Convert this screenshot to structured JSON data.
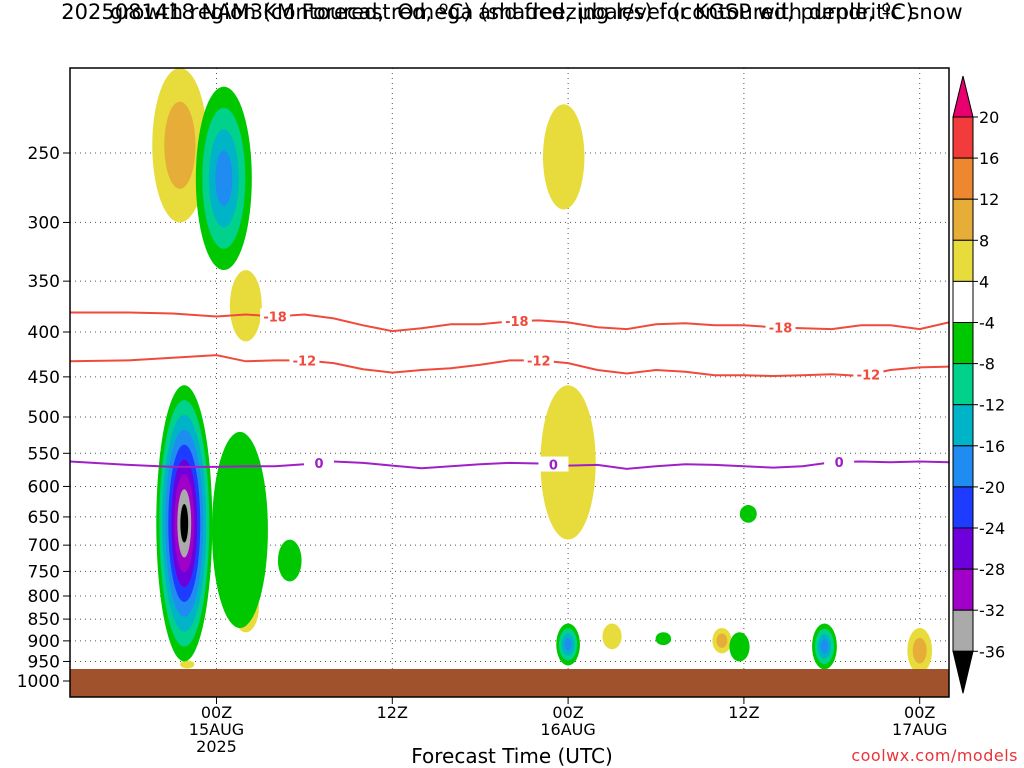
{
  "title_line1": "2025081418 NAM3KM Forecast Omega (shaded, μbar/s) for KGSP with dendritic snow",
  "title_line2": "growth region (contoured, red, ºC) and freezing level (contoured, purple, ºC)",
  "credit": "coolwx.com/models",
  "chart_data": {
    "type": "heatmap",
    "title": "2025081418 NAM3KM Forecast Omega (shaded, μbar/s) for KGSP with dendritic snow growth region (contoured, red, ºC) and freezing level (contoured, purple, ºC)",
    "xlabel": "Forecast Time (UTC)",
    "ylabel": "",
    "xlim_hours": [
      -10,
      50
    ],
    "ylim_hPa": [
      1000,
      200
    ],
    "y_scale": "log-pressure",
    "y_ticks": [
      250,
      300,
      350,
      400,
      450,
      500,
      550,
      600,
      650,
      700,
      750,
      800,
      850,
      900,
      950,
      1000
    ],
    "x_ticks": [
      {
        "hour": 0,
        "lines": [
          "00Z",
          "15AUG",
          "2025"
        ]
      },
      {
        "hour": 12,
        "lines": [
          "12Z"
        ]
      },
      {
        "hour": 24,
        "lines": [
          "00Z",
          "16AUG"
        ]
      },
      {
        "hour": 36,
        "lines": [
          "12Z"
        ]
      },
      {
        "hour": 48,
        "lines": [
          "00Z",
          "17AUG"
        ]
      }
    ],
    "grid": true,
    "ground_color": "#a0522d",
    "colorbar": {
      "levels": [
        20,
        16,
        12,
        8,
        4,
        -4,
        -8,
        -12,
        -16,
        -20,
        -24,
        -28,
        -32,
        -36
      ],
      "colors": [
        "#e8006e",
        "#f23c3c",
        "#ee8830",
        "#e6ad38",
        "#e8dc3c",
        "#ffffff",
        "#00c800",
        "#00d28c",
        "#00b4c8",
        "#1e8cf0",
        "#1e3cff",
        "#6e00dc",
        "#a000c8",
        "#aaaaaa",
        "#000000"
      ]
    },
    "contours": [
      {
        "name": "-18",
        "color": "#f04a3c",
        "label_hours": [
          4.0,
          20.5,
          38.5
        ],
        "points": [
          [
            -10,
            380
          ],
          [
            -6,
            380
          ],
          [
            -3,
            381
          ],
          [
            0,
            384
          ],
          [
            2,
            382
          ],
          [
            4,
            384
          ],
          [
            6,
            382
          ],
          [
            8,
            386
          ],
          [
            10,
            393
          ],
          [
            12,
            399
          ],
          [
            14,
            396
          ],
          [
            16,
            392
          ],
          [
            18,
            392
          ],
          [
            20,
            389
          ],
          [
            22,
            388
          ],
          [
            24,
            390
          ],
          [
            26,
            395
          ],
          [
            28,
            397
          ],
          [
            30,
            392
          ],
          [
            32,
            391
          ],
          [
            34,
            393
          ],
          [
            36,
            393
          ],
          [
            38,
            395
          ],
          [
            40,
            396
          ],
          [
            42,
            397
          ],
          [
            44,
            393
          ],
          [
            46,
            393
          ],
          [
            48,
            397
          ],
          [
            50,
            390
          ]
        ]
      },
      {
        "name": "-12",
        "color": "#f04a3c",
        "label_hours": [
          6.0,
          22.0,
          44.5
        ],
        "points": [
          [
            -10,
            432
          ],
          [
            -6,
            431
          ],
          [
            -3,
            428
          ],
          [
            0,
            425
          ],
          [
            2,
            432
          ],
          [
            4,
            431
          ],
          [
            6,
            431
          ],
          [
            8,
            434
          ],
          [
            10,
            441
          ],
          [
            12,
            445
          ],
          [
            14,
            442
          ],
          [
            16,
            440
          ],
          [
            18,
            436
          ],
          [
            20,
            431
          ],
          [
            22,
            431
          ],
          [
            24,
            434
          ],
          [
            26,
            442
          ],
          [
            28,
            446
          ],
          [
            30,
            442
          ],
          [
            32,
            444
          ],
          [
            34,
            448
          ],
          [
            36,
            448
          ],
          [
            38,
            449
          ],
          [
            40,
            448
          ],
          [
            42,
            447
          ],
          [
            44,
            449
          ],
          [
            46,
            442
          ],
          [
            48,
            439
          ],
          [
            50,
            438
          ]
        ]
      },
      {
        "name": "0",
        "color": "#a020c8",
        "label_hours": [
          7.0,
          23.0,
          42.5
        ],
        "points": [
          [
            -10,
            562
          ],
          [
            -6,
            567
          ],
          [
            -3,
            570
          ],
          [
            0,
            570
          ],
          [
            2,
            569
          ],
          [
            4,
            569
          ],
          [
            6,
            566
          ],
          [
            8,
            562
          ],
          [
            10,
            564
          ],
          [
            12,
            568
          ],
          [
            14,
            572
          ],
          [
            16,
            569
          ],
          [
            18,
            566
          ],
          [
            20,
            564
          ],
          [
            22,
            565
          ],
          [
            24,
            568
          ],
          [
            26,
            567
          ],
          [
            28,
            573
          ],
          [
            30,
            569
          ],
          [
            32,
            566
          ],
          [
            34,
            567
          ],
          [
            36,
            569
          ],
          [
            38,
            571
          ],
          [
            40,
            569
          ],
          [
            42,
            563
          ],
          [
            44,
            562
          ],
          [
            46,
            563
          ],
          [
            48,
            562
          ],
          [
            50,
            563
          ]
        ]
      }
    ],
    "features": [
      {
        "kind": "omega_max",
        "value": 8,
        "hour": -2.5,
        "p_low": 200,
        "p_high": 300
      },
      {
        "kind": "omega_max",
        "value": 4,
        "hour": 2.0,
        "p_low": 340,
        "p_high": 410
      },
      {
        "kind": "omega_max",
        "value": 4,
        "hour": 2.0,
        "p_low": 770,
        "p_high": 880
      },
      {
        "kind": "omega_max",
        "value": 4,
        "hour": -2.0,
        "p_low": 950,
        "p_high": 965
      },
      {
        "kind": "omega_max",
        "value": 4,
        "hour": 23.7,
        "p_low": 220,
        "p_high": 290
      },
      {
        "kind": "omega_max",
        "value": 4,
        "hour": 24.0,
        "p_low": 460,
        "p_high": 690
      },
      {
        "kind": "omega_max",
        "value": 4,
        "hour": 27.0,
        "p_low": 860,
        "p_high": 920
      },
      {
        "kind": "omega_max",
        "value": 8,
        "hour": 34.5,
        "p_low": 870,
        "p_high": 930
      },
      {
        "kind": "omega_max",
        "value": 8,
        "hour": 48.0,
        "p_low": 870,
        "p_high": 980
      },
      {
        "kind": "omega_min",
        "value": -36,
        "hour": -2.2,
        "p_low": 460,
        "p_high": 950
      },
      {
        "kind": "omega_min",
        "value": -16,
        "hour": 0.5,
        "p_low": 210,
        "p_high": 340
      },
      {
        "kind": "omega_min",
        "value": -4,
        "hour": 1.6,
        "p_low": 520,
        "p_high": 870
      },
      {
        "kind": "omega_min",
        "value": -4,
        "hour": 5.0,
        "p_low": 690,
        "p_high": 770
      },
      {
        "kind": "omega_min",
        "value": -16,
        "hour": 24.0,
        "p_low": 860,
        "p_high": 960
      },
      {
        "kind": "omega_min",
        "value": -4,
        "hour": 30.5,
        "p_low": 880,
        "p_high": 910
      },
      {
        "kind": "omega_min",
        "value": -4,
        "hour": 36.3,
        "p_low": 630,
        "p_high": 660
      },
      {
        "kind": "omega_min",
        "value": -4,
        "hour": 35.7,
        "p_low": 880,
        "p_high": 950
      },
      {
        "kind": "omega_min",
        "value": -16,
        "hour": 41.5,
        "p_low": 860,
        "p_high": 970
      }
    ]
  }
}
